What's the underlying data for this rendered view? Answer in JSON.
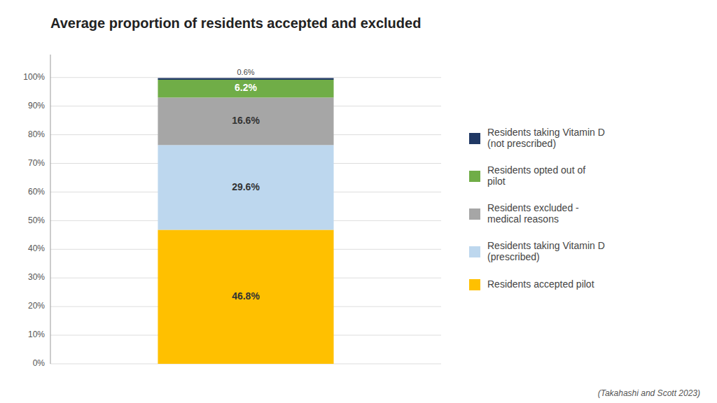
{
  "chart_data": {
    "type": "bar",
    "stacked": true,
    "title": "Average proportion of residents accepted and excluded",
    "categories": [
      null
    ],
    "series": [
      {
        "name": "Residents accepted pilot",
        "color": "#FFC000",
        "values": [
          46.8
        ],
        "value_labels": [
          "46.8%"
        ]
      },
      {
        "name": "Residents taking Vitamin D\n(prescribed)",
        "color": "#BDD7EE",
        "values": [
          29.6
        ],
        "value_labels": [
          "29.6%"
        ]
      },
      {
        "name": "Residents excluded -\nmedical reasons",
        "color": "#A6A6A6",
        "values": [
          16.6
        ],
        "value_labels": [
          "16.6%"
        ]
      },
      {
        "name": "Residents opted out of\npilot",
        "color": "#70AD47",
        "values": [
          6.2
        ],
        "value_labels": [
          "6.2%"
        ]
      },
      {
        "name": "Residents taking Vitamin D\n(not prescribed)",
        "color": "#203864",
        "values": [
          0.6
        ],
        "value_labels": [
          "0.6%"
        ]
      }
    ],
    "ylim": [
      0,
      108
    ],
    "yticks": [
      {
        "value": 0,
        "label": "0%"
      },
      {
        "value": 10,
        "label": "10%"
      },
      {
        "value": 20,
        "label": "20%"
      },
      {
        "value": 30,
        "label": "30%"
      },
      {
        "value": 40,
        "label": "40%"
      },
      {
        "value": 50,
        "label": "50%"
      },
      {
        "value": 60,
        "label": "60%"
      },
      {
        "value": 70,
        "label": "70%"
      },
      {
        "value": 80,
        "label": "80%"
      },
      {
        "value": 90,
        "label": "90%"
      },
      {
        "value": 100,
        "label": "100%"
      }
    ],
    "grid": true,
    "legend": "right",
    "data_labels": true,
    "tick_labels": "y",
    "annotations": [
      "(Takahashi and Scott 2023)"
    ]
  }
}
